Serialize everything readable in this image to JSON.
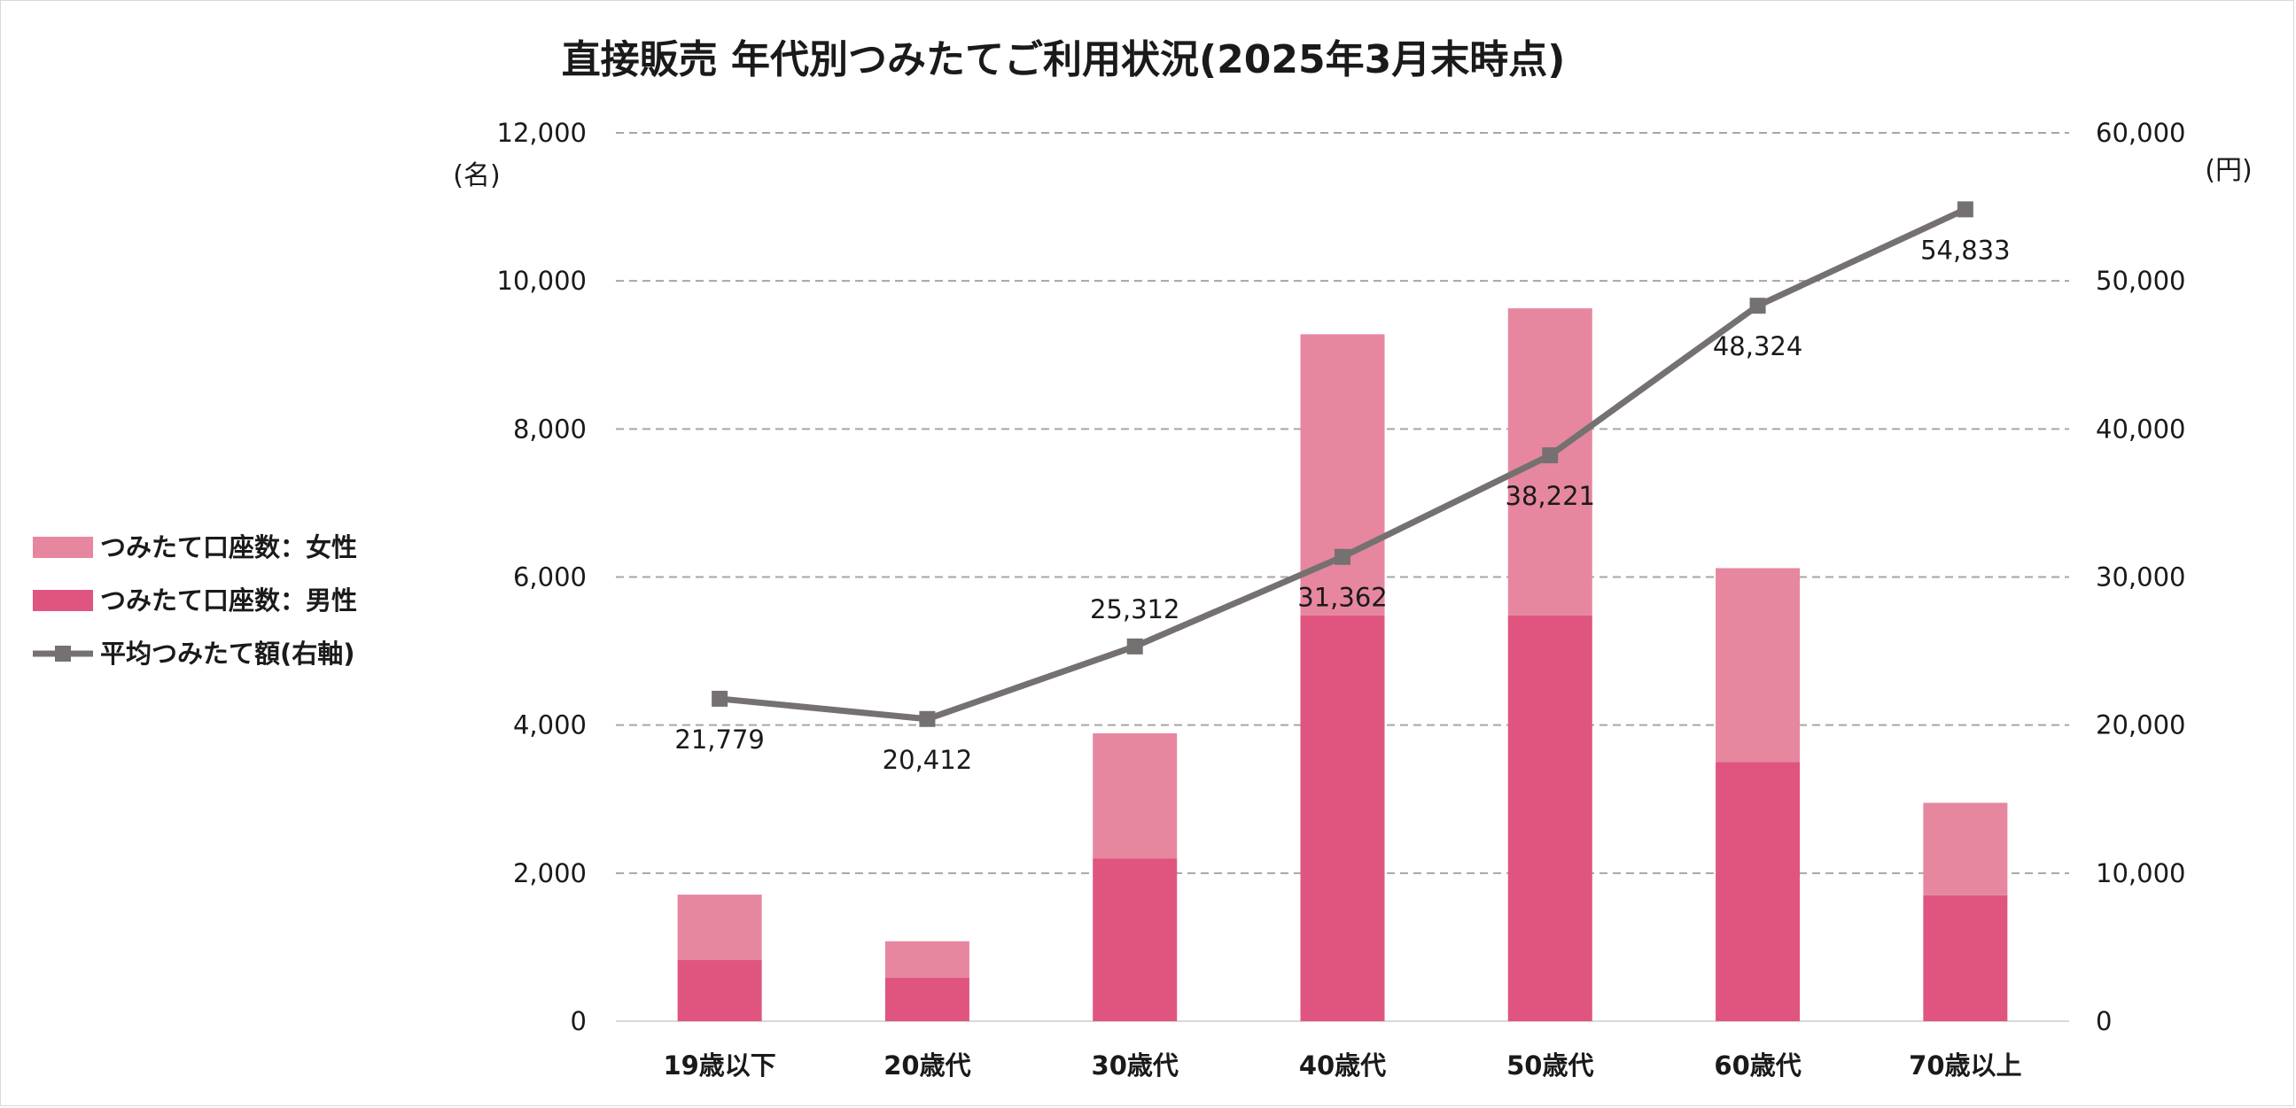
{
  "chart_data": {
    "type": "bar",
    "title": "直接販売 年代別つみたてご利用状況(2025年3月末時点)",
    "categories": [
      "19歳以下",
      "20歳代",
      "30歳代",
      "40歳代",
      "50歳代",
      "60歳代",
      "70歳以上"
    ],
    "series": [
      {
        "name": "つみたて口座数：男性",
        "type": "bar",
        "stack": "accounts",
        "axis": "left",
        "color": "#e05580",
        "values": [
          830,
          590,
          2200,
          5480,
          5480,
          3500,
          1700
        ]
      },
      {
        "name": "つみたて口座数：女性",
        "type": "bar",
        "stack": "accounts",
        "axis": "left",
        "color": "#e6879f",
        "values": [
          880,
          490,
          1690,
          3800,
          4150,
          2620,
          1250
        ]
      },
      {
        "name": "平均つみたて額(右軸)",
        "type": "line",
        "axis": "right",
        "color": "#767171",
        "values": [
          21779,
          20412,
          25312,
          31362,
          38221,
          48324,
          54833
        ],
        "labels": [
          "21,779",
          "20,412",
          "25,312",
          "31,362",
          "38,221",
          "48,324",
          "54,833"
        ]
      }
    ],
    "y_left": {
      "unit": "(名)",
      "range": [
        0,
        12000
      ],
      "ticks": [
        "0",
        "2,000",
        "4,000",
        "6,000",
        "8,000",
        "10,000",
        "12,000"
      ]
    },
    "y_right": {
      "unit": "(円)",
      "range": [
        0,
        60000
      ],
      "ticks": [
        "0",
        "10,000",
        "20,000",
        "30,000",
        "40,000",
        "50,000",
        "60,000"
      ]
    },
    "grid": "horizontal-dashed",
    "legend_position": "left",
    "legend_order": [
      "つみたて口座数：女性",
      "つみたて口座数：男性",
      "平均つみたて額(右軸)"
    ]
  }
}
